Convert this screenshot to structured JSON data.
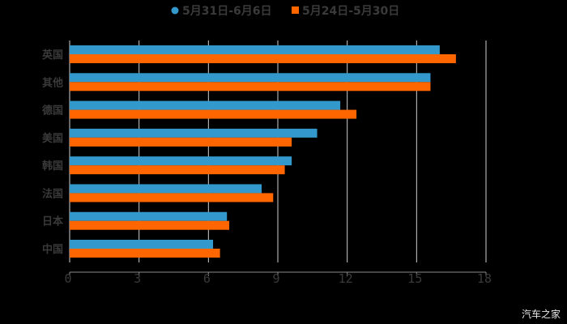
{
  "chart_data": {
    "type": "bar",
    "orientation": "horizontal",
    "title": "",
    "xlabel": "",
    "ylabel": "",
    "categories": [
      "英国",
      "其他",
      "德国",
      "美国",
      "韩国",
      "法国",
      "日本",
      "中国"
    ],
    "series": [
      {
        "name": "5月31日-6月6日",
        "color": "#3399cc",
        "marker": "circle",
        "values": [
          16.0,
          15.6,
          11.7,
          10.7,
          9.6,
          8.3,
          6.8,
          6.2
        ]
      },
      {
        "name": "5月24日-5月30日",
        "color": "#ff6600",
        "marker": "square",
        "values": [
          16.7,
          15.6,
          12.4,
          9.6,
          9.3,
          8.8,
          6.9,
          6.5
        ]
      }
    ],
    "xlim": [
      0,
      18
    ],
    "xticks": [
      0,
      3,
      6,
      9,
      12,
      15,
      18
    ],
    "grid": true,
    "legend_position": "top"
  },
  "watermark": "汽车之家"
}
